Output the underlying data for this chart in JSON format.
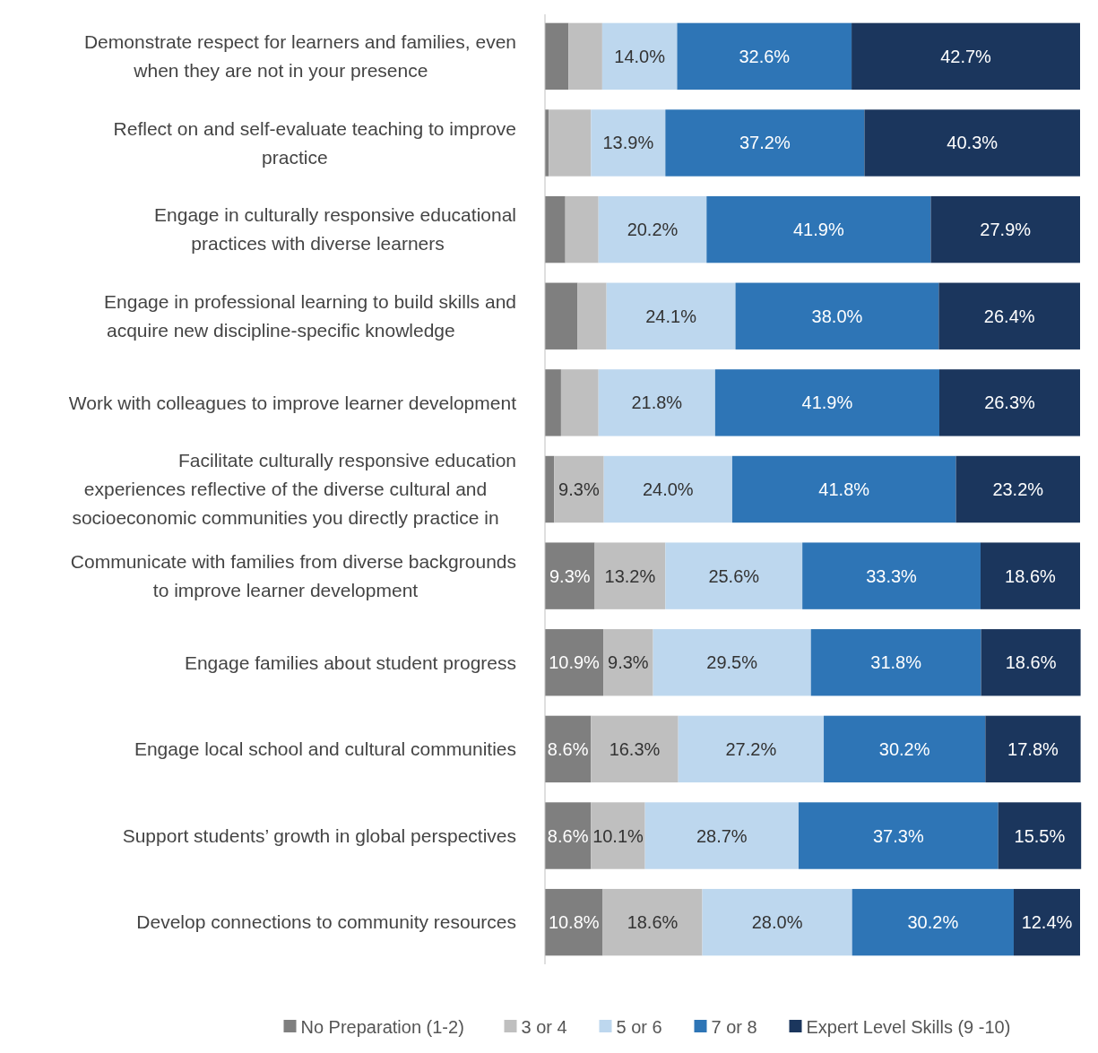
{
  "chart_data": {
    "type": "bar",
    "orientation": "horizontal",
    "stacked": true,
    "legend": "bottom",
    "xlim": [
      0,
      100
    ],
    "tick_labels": "y",
    "categories": [
      "Demonstrate respect for learners and families, even when they are not in your presence",
      "Reflect on and self-evaluate teaching to improve practice",
      "Engage in culturally responsive educational practices with diverse learners",
      "Engage in professional learning to build skills and acquire new discipline-specific knowledge",
      "Work with colleagues to improve learner development",
      "Facilitate culturally responsive education experiences reflective of the diverse cultural and socioeconomic communities you directly practice in",
      "Communicate with families from diverse backgrounds to improve learner development",
      "Engage families about student progress",
      "Engage local school and cultural communities",
      "Support students’ growth in global perspectives",
      "Develop connections to community resources"
    ],
    "series": [
      {
        "name": "No Preparation (1-2)",
        "color": "#7f7f7f",
        "values": [
          4.4,
          0.7,
          3.8,
          6.1,
          3.0,
          1.7,
          9.3,
          10.9,
          8.6,
          8.6,
          10.8
        ],
        "value_labels": [
          null,
          null,
          null,
          null,
          null,
          null,
          "9.3%",
          "10.9%",
          "8.6%",
          "8.6%",
          "10.8%"
        ]
      },
      {
        "name": "3 or 4",
        "color": "#bfbfbf",
        "values": [
          6.3,
          7.9,
          6.2,
          5.4,
          7.0,
          9.3,
          13.2,
          9.3,
          16.3,
          10.1,
          18.6
        ],
        "value_labels": [
          null,
          null,
          null,
          null,
          null,
          "9.3%",
          "13.2%",
          "9.3%",
          "16.3%",
          "10.1%",
          "18.6%"
        ]
      },
      {
        "name": "5 or 6",
        "color": "#bdd7ee",
        "values": [
          14.0,
          13.9,
          20.2,
          24.1,
          21.8,
          24.0,
          25.6,
          29.5,
          27.2,
          28.7,
          28.0
        ],
        "value_labels": [
          "14.0%",
          "13.9%",
          "20.2%",
          "24.1%",
          "21.8%",
          "24.0%",
          "25.6%",
          "29.5%",
          "27.2%",
          "28.7%",
          "28.0%"
        ]
      },
      {
        "name": "7 or 8",
        "color": "#2e75b6",
        "values": [
          32.6,
          37.2,
          41.9,
          38.0,
          41.9,
          41.8,
          33.3,
          31.8,
          30.2,
          37.3,
          30.2
        ],
        "value_labels": [
          "32.6%",
          "37.2%",
          "41.9%",
          "38.0%",
          "41.9%",
          "41.8%",
          "33.3%",
          "31.8%",
          "30.2%",
          "37.3%",
          "30.2%"
        ]
      },
      {
        "name": "Expert Level Skills (9 -10)",
        "color": "#1b365d",
        "values": [
          42.7,
          40.3,
          27.9,
          26.4,
          26.3,
          23.2,
          18.6,
          18.6,
          17.8,
          15.5,
          12.4
        ],
        "value_labels": [
          "42.7%",
          "40.3%",
          "27.9%",
          "26.4%",
          "26.3%",
          "23.2%",
          "18.6%",
          "18.6%",
          "17.8%",
          "15.5%",
          "12.4%"
        ]
      }
    ]
  }
}
